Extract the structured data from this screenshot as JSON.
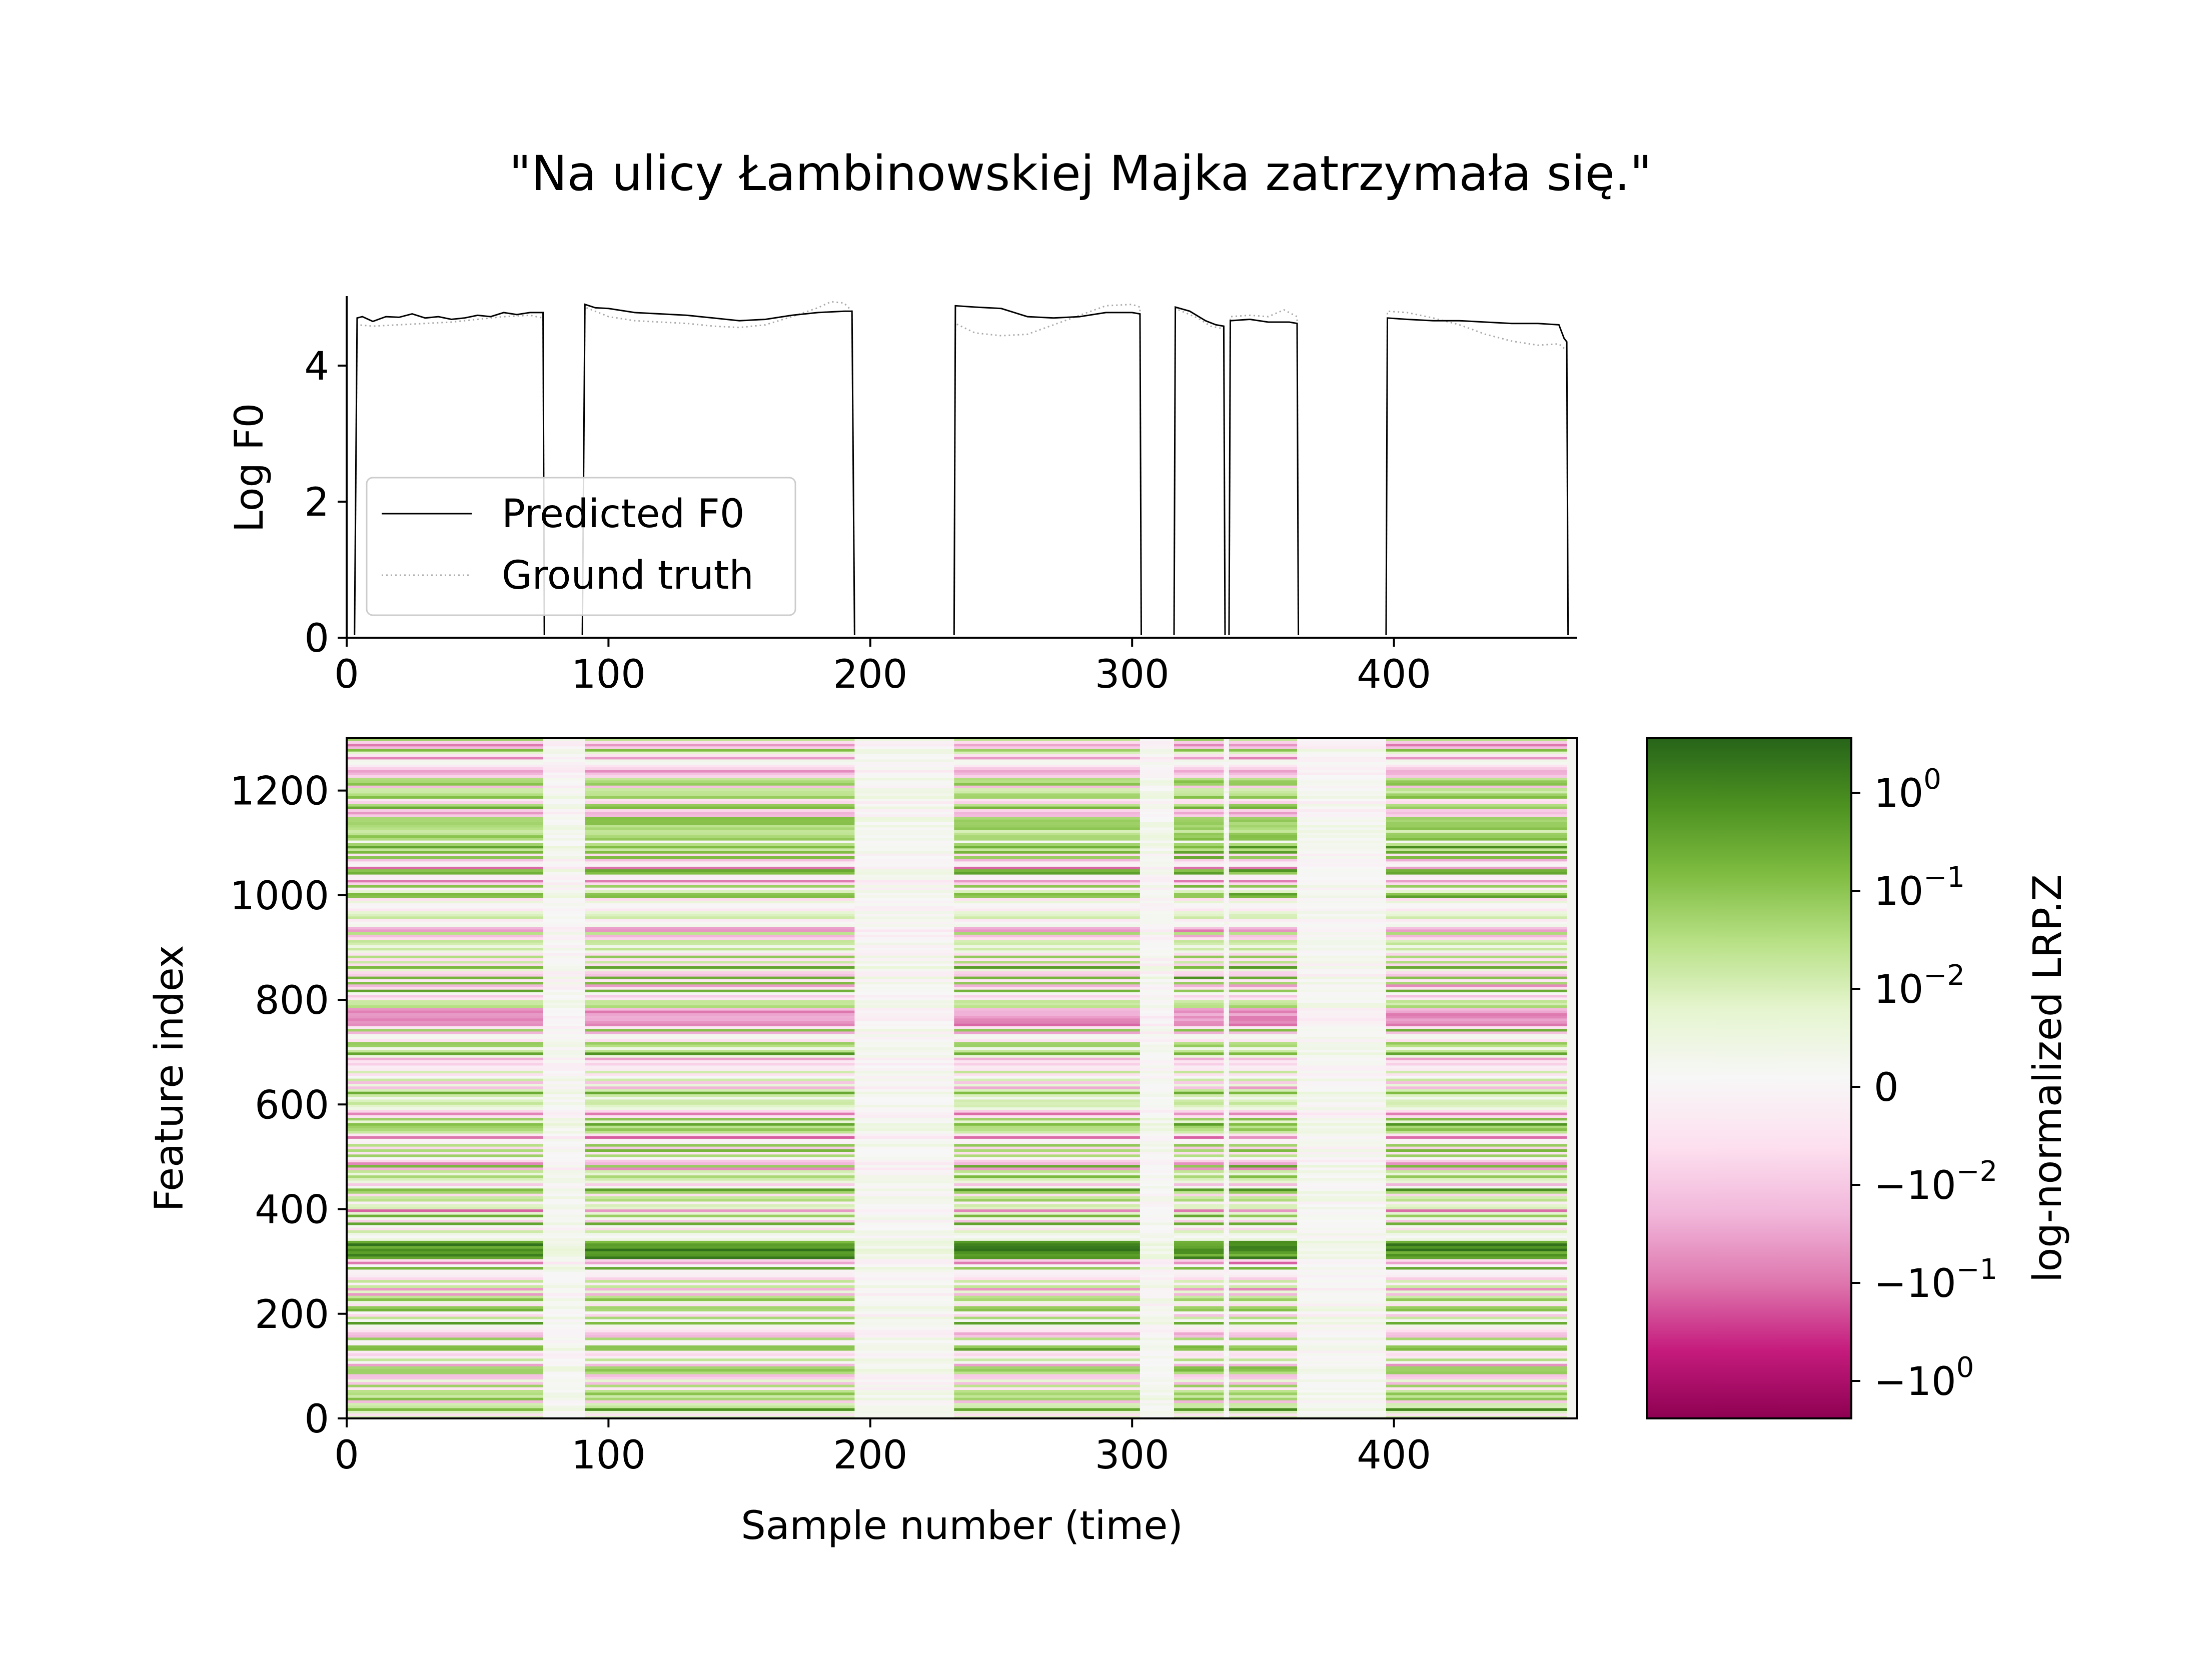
{
  "title": "\"Na ulicy Łambinowskiej Majka zatrzymała się.\"",
  "chart_data": [
    {
      "type": "line",
      "ylabel": "Log F0",
      "xlabel": "",
      "xlim": [
        0,
        470
      ],
      "ylim": [
        0,
        5
      ],
      "x_ticks": [
        "0",
        "100",
        "200",
        "300",
        "400"
      ],
      "y_ticks": [
        "0",
        "2",
        "4"
      ],
      "legend_position": "lower-left",
      "series": [
        {
          "name": "Predicted F0",
          "style": "solid",
          "color": "#000000",
          "points": [
            [
              0,
              0
            ],
            [
              3,
              0
            ],
            [
              4,
              4.7
            ],
            [
              6,
              4.72
            ],
            [
              10,
              4.65
            ],
            [
              15,
              4.72
            ],
            [
              20,
              4.71
            ],
            [
              25,
              4.76
            ],
            [
              30,
              4.7
            ],
            [
              35,
              4.72
            ],
            [
              40,
              4.68
            ],
            [
              45,
              4.7
            ],
            [
              50,
              4.74
            ],
            [
              55,
              4.72
            ],
            [
              60,
              4.78
            ],
            [
              65,
              4.75
            ],
            [
              70,
              4.78
            ],
            [
              75,
              4.78
            ],
            [
              75.5,
              0
            ],
            [
              90,
              0
            ],
            [
              91,
              4.9
            ],
            [
              95,
              4.85
            ],
            [
              100,
              4.84
            ],
            [
              110,
              4.78
            ],
            [
              120,
              4.76
            ],
            [
              130,
              4.74
            ],
            [
              140,
              4.7
            ],
            [
              150,
              4.66
            ],
            [
              160,
              4.68
            ],
            [
              170,
              4.74
            ],
            [
              180,
              4.78
            ],
            [
              190,
              4.8
            ],
            [
              193,
              4.8
            ],
            [
              194,
              0
            ],
            [
              232,
              0
            ],
            [
              232.5,
              4.88
            ],
            [
              240,
              4.86
            ],
            [
              250,
              4.84
            ],
            [
              260,
              4.72
            ],
            [
              270,
              4.7
            ],
            [
              280,
              4.72
            ],
            [
              290,
              4.78
            ],
            [
              300,
              4.78
            ],
            [
              303,
              4.76
            ],
            [
              303.5,
              0
            ],
            [
              316,
              0
            ],
            [
              316.5,
              4.86
            ],
            [
              322,
              4.8
            ],
            [
              328,
              4.66
            ],
            [
              332,
              4.6
            ],
            [
              335,
              4.58
            ],
            [
              335.5,
              0
            ],
            [
              337,
              0
            ],
            [
              337.5,
              4.66
            ],
            [
              345,
              4.68
            ],
            [
              352,
              4.64
            ],
            [
              360,
              4.64
            ],
            [
              363,
              4.62
            ],
            [
              363.5,
              0
            ],
            [
              397,
              0
            ],
            [
              397.5,
              4.7
            ],
            [
              405,
              4.68
            ],
            [
              415,
              4.66
            ],
            [
              425,
              4.66
            ],
            [
              435,
              4.64
            ],
            [
              445,
              4.62
            ],
            [
              455,
              4.62
            ],
            [
              463,
              4.6
            ],
            [
              465,
              4.4
            ],
            [
              466,
              4.35
            ],
            [
              466.5,
              0
            ],
            [
              470,
              0
            ]
          ]
        },
        {
          "name": "Ground truth",
          "style": "dotted",
          "color": "#aaaaaa",
          "points": [
            [
              0,
              0
            ],
            [
              3,
              0
            ],
            [
              4,
              4.6
            ],
            [
              10,
              4.58
            ],
            [
              20,
              4.6
            ],
            [
              30,
              4.62
            ],
            [
              40,
              4.64
            ],
            [
              50,
              4.68
            ],
            [
              60,
              4.72
            ],
            [
              70,
              4.74
            ],
            [
              75,
              4.7
            ],
            [
              75.5,
              0
            ],
            [
              90,
              0
            ],
            [
              91,
              4.86
            ],
            [
              100,
              4.72
            ],
            [
              110,
              4.66
            ],
            [
              120,
              4.64
            ],
            [
              130,
              4.62
            ],
            [
              140,
              4.58
            ],
            [
              150,
              4.56
            ],
            [
              160,
              4.6
            ],
            [
              170,
              4.72
            ],
            [
              180,
              4.85
            ],
            [
              185,
              4.94
            ],
            [
              190,
              4.92
            ],
            [
              193,
              4.8
            ],
            [
              194,
              0
            ],
            [
              232,
              0
            ],
            [
              232.5,
              4.62
            ],
            [
              240,
              4.48
            ],
            [
              250,
              4.44
            ],
            [
              260,
              4.46
            ],
            [
              270,
              4.6
            ],
            [
              280,
              4.74
            ],
            [
              290,
              4.88
            ],
            [
              300,
              4.9
            ],
            [
              303,
              4.86
            ],
            [
              303.5,
              0
            ],
            [
              316,
              0
            ],
            [
              316.5,
              4.84
            ],
            [
              325,
              4.7
            ],
            [
              330,
              4.58
            ],
            [
              335,
              4.54
            ],
            [
              335.5,
              0
            ],
            [
              337,
              0
            ],
            [
              337.5,
              4.72
            ],
            [
              345,
              4.74
            ],
            [
              352,
              4.72
            ],
            [
              358,
              4.82
            ],
            [
              363,
              4.72
            ],
            [
              363.5,
              0
            ],
            [
              397,
              0
            ],
            [
              397.5,
              4.8
            ],
            [
              405,
              4.78
            ],
            [
              415,
              4.7
            ],
            [
              425,
              4.6
            ],
            [
              435,
              4.46
            ],
            [
              445,
              4.36
            ],
            [
              455,
              4.3
            ],
            [
              463,
              4.32
            ],
            [
              466,
              4.22
            ],
            [
              466.5,
              0
            ],
            [
              470,
              0
            ]
          ]
        }
      ]
    },
    {
      "type": "heatmap",
      "xlabel": "Sample number (time)",
      "ylabel": "Feature index",
      "xlim": [
        0,
        470
      ],
      "ylim": [
        0,
        1300
      ],
      "x_ticks": [
        "0",
        "100",
        "200",
        "300",
        "400"
      ],
      "y_ticks": [
        "0",
        "200",
        "400",
        "600",
        "800",
        "1000",
        "1200"
      ],
      "colormap": "PiYG",
      "silent_segments": [
        [
          75,
          91
        ],
        [
          194,
          232
        ],
        [
          303,
          316
        ],
        [
          335,
          337
        ],
        [
          363,
          397
        ]
      ],
      "colorbar": {
        "label": "log-normalized LRP.Z",
        "ticks": [
          {
            "base": "10",
            "exp": "0",
            "sign": ""
          },
          {
            "base": "10",
            "exp": "−1",
            "sign": ""
          },
          {
            "base": "10",
            "exp": "−2",
            "sign": ""
          },
          {
            "base": "0",
            "exp": "",
            "sign": ""
          },
          {
            "base": "10",
            "exp": "−2",
            "sign": "−"
          },
          {
            "base": "10",
            "exp": "−1",
            "sign": "−"
          },
          {
            "base": "10",
            "exp": "0",
            "sign": "−"
          }
        ],
        "stops": [
          "#8e0152",
          "#c51b7d",
          "#de77ae",
          "#f1b6da",
          "#fde0ef",
          "#f7f7f7",
          "#e6f5d0",
          "#b8e186",
          "#7fbc41",
          "#4d9221",
          "#276419"
        ]
      }
    }
  ]
}
